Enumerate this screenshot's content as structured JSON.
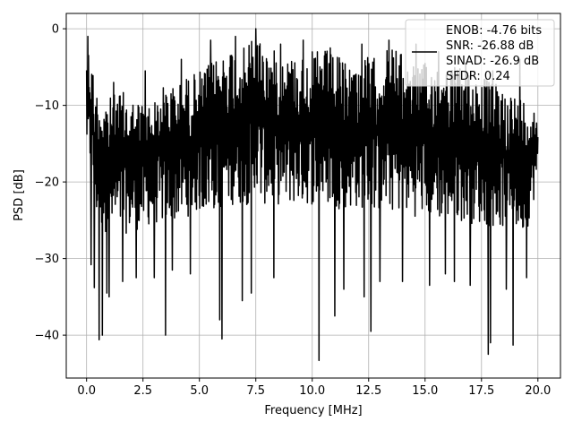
{
  "chart_data": {
    "type": "line",
    "xlabel": "Frequency [MHz]",
    "ylabel": "PSD [dB]",
    "xlim": [
      -0.9,
      21.0
    ],
    "ylim": [
      -45.6,
      2.0
    ],
    "x_ticks": [
      0.0,
      2.5,
      5.0,
      7.5,
      10.0,
      12.5,
      15.0,
      17.5,
      20.0
    ],
    "x_tick_labels": [
      "0.0",
      "2.5",
      "5.0",
      "7.5",
      "10.0",
      "12.5",
      "15.0",
      "17.5",
      "20.0"
    ],
    "y_ticks": [
      0,
      -10,
      -20,
      -30,
      -40
    ],
    "y_tick_labels": [
      "0",
      "−10",
      "−20",
      "−30",
      "−40"
    ],
    "grid": true,
    "legend_position": "top-right",
    "legend_entries": [
      "ENOB: -4.76 bits",
      "SNR: -26.88 dB",
      "SINAD: -26.9 dB",
      "SFDR: 0.24"
    ],
    "series": [
      {
        "color": "#000000",
        "x_range": [
          0.0,
          20.0
        ],
        "envelope_upper": [
          [
            0.0,
            -1.0
          ],
          [
            0.5,
            -8.5
          ],
          [
            1.0,
            -9.0
          ],
          [
            1.5,
            -8.0
          ],
          [
            2.0,
            -9.0
          ],
          [
            2.5,
            -9.5
          ],
          [
            3.0,
            -9.5
          ],
          [
            3.5,
            -7.0
          ],
          [
            4.0,
            -7.5
          ],
          [
            4.5,
            -6.0
          ],
          [
            5.0,
            -5.5
          ],
          [
            5.5,
            -4.5
          ],
          [
            6.0,
            -3.0
          ],
          [
            6.5,
            -2.0
          ],
          [
            7.0,
            -2.5
          ],
          [
            7.5,
            0.0
          ],
          [
            8.0,
            -2.5
          ],
          [
            8.5,
            -3.0
          ],
          [
            9.0,
            -3.5
          ],
          [
            9.5,
            -3.5
          ],
          [
            10.0,
            -3.0
          ],
          [
            10.5,
            -2.5
          ],
          [
            11.0,
            -3.5
          ],
          [
            11.5,
            -4.0
          ],
          [
            12.0,
            -4.5
          ],
          [
            12.5,
            -3.5
          ],
          [
            13.0,
            -4.0
          ],
          [
            13.5,
            -1.5
          ],
          [
            14.0,
            -3.5
          ],
          [
            14.5,
            -4.0
          ],
          [
            15.0,
            -4.5
          ],
          [
            15.5,
            -4.0
          ],
          [
            16.0,
            -4.5
          ],
          [
            16.5,
            -5.0
          ],
          [
            17.0,
            -5.5
          ],
          [
            17.5,
            -6.0
          ],
          [
            18.0,
            -7.0
          ],
          [
            18.5,
            -7.5
          ],
          [
            19.0,
            -8.5
          ],
          [
            19.5,
            -9.0
          ],
          [
            20.0,
            -11.0
          ]
        ],
        "envelope_lower": [
          [
            0.0,
            -16.0
          ],
          [
            0.5,
            -26.0
          ],
          [
            1.0,
            -27.0
          ],
          [
            1.5,
            -27.0
          ],
          [
            2.0,
            -26.5
          ],
          [
            2.5,
            -26.0
          ],
          [
            3.0,
            -25.5
          ],
          [
            3.5,
            -25.5
          ],
          [
            4.0,
            -25.0
          ],
          [
            4.5,
            -24.5
          ],
          [
            5.0,
            -24.0
          ],
          [
            5.5,
            -24.0
          ],
          [
            6.0,
            -23.5
          ],
          [
            6.5,
            -23.0
          ],
          [
            7.0,
            -23.0
          ],
          [
            7.5,
            -23.0
          ],
          [
            8.0,
            -23.0
          ],
          [
            8.5,
            -23.0
          ],
          [
            9.0,
            -23.0
          ],
          [
            9.5,
            -23.0
          ],
          [
            10.0,
            -23.0
          ],
          [
            10.5,
            -23.0
          ],
          [
            11.0,
            -23.5
          ],
          [
            11.5,
            -23.5
          ],
          [
            12.0,
            -23.5
          ],
          [
            12.5,
            -23.5
          ],
          [
            13.0,
            -24.0
          ],
          [
            13.5,
            -24.0
          ],
          [
            14.0,
            -24.0
          ],
          [
            14.5,
            -24.5
          ],
          [
            15.0,
            -24.5
          ],
          [
            15.5,
            -25.0
          ],
          [
            16.0,
            -25.0
          ],
          [
            16.5,
            -25.0
          ],
          [
            17.0,
            -25.5
          ],
          [
            17.5,
            -25.5
          ],
          [
            18.0,
            -26.0
          ],
          [
            18.5,
            -26.0
          ],
          [
            19.0,
            -26.5
          ],
          [
            19.5,
            -26.5
          ],
          [
            20.0,
            -20.0
          ]
        ],
        "deep_dips": [
          [
            0.2,
            -30.8
          ],
          [
            0.35,
            -33.8
          ],
          [
            0.55,
            -40.6
          ],
          [
            0.7,
            -40.0
          ],
          [
            0.9,
            -34.5
          ],
          [
            1.0,
            -35.0
          ],
          [
            1.6,
            -33.0
          ],
          [
            2.2,
            -32.5
          ],
          [
            3.0,
            -32.5
          ],
          [
            3.5,
            -40.0
          ],
          [
            3.8,
            -31.5
          ],
          [
            4.6,
            -32.0
          ],
          [
            5.9,
            -38.0
          ],
          [
            6.0,
            -40.5
          ],
          [
            6.9,
            -35.5
          ],
          [
            7.3,
            -34.5
          ],
          [
            8.3,
            -32.5
          ],
          [
            9.6,
            -34.0
          ],
          [
            10.3,
            -43.3
          ],
          [
            11.0,
            -37.5
          ],
          [
            11.4,
            -34.0
          ],
          [
            12.3,
            -35.0
          ],
          [
            12.6,
            -39.5
          ],
          [
            13.0,
            -33.0
          ],
          [
            14.0,
            -33.0
          ],
          [
            15.2,
            -33.5
          ],
          [
            15.9,
            -32.0
          ],
          [
            16.3,
            -33.0
          ],
          [
            17.0,
            -33.5
          ],
          [
            17.8,
            -42.5
          ],
          [
            17.9,
            -41.0
          ],
          [
            18.6,
            -34.0
          ],
          [
            18.9,
            -41.3
          ],
          [
            19.5,
            -32.5
          ]
        ],
        "peak_spikes": [
          [
            0.05,
            -1.0
          ],
          [
            1.2,
            -7.0
          ],
          [
            2.6,
            -5.5
          ],
          [
            4.2,
            -4.0
          ],
          [
            5.5,
            -1.5
          ],
          [
            6.6,
            -1.0
          ],
          [
            7.5,
            0.0
          ],
          [
            8.6,
            -2.0
          ],
          [
            9.6,
            -1.5
          ],
          [
            10.8,
            -2.5
          ],
          [
            12.2,
            -2.0
          ],
          [
            13.4,
            -1.5
          ],
          [
            14.6,
            -2.0
          ],
          [
            15.6,
            -3.0
          ],
          [
            16.8,
            -4.5
          ],
          [
            18.0,
            -5.5
          ],
          [
            19.2,
            -4.0
          ]
        ]
      }
    ]
  }
}
